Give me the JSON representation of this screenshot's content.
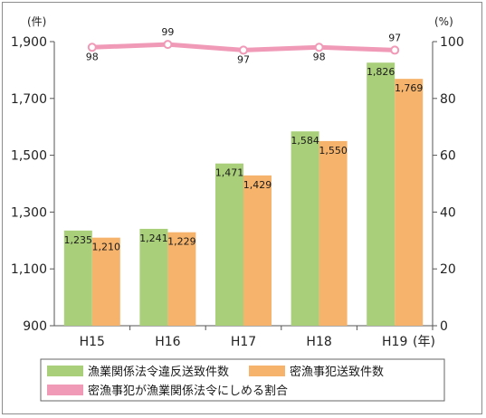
{
  "chart_data": {
    "type": "bar",
    "categories": [
      "H15",
      "H16",
      "H17",
      "H18",
      "H19"
    ],
    "x_unit": "(年)",
    "y_left": {
      "unit": "(件)",
      "min": 900,
      "max": 1900,
      "ticks": [
        "900",
        "1,100",
        "1,300",
        "1,500",
        "1,700",
        "1,900"
      ]
    },
    "y_right": {
      "unit": "(%)",
      "min": 0,
      "max": 100,
      "ticks": [
        "0",
        "20",
        "40",
        "60",
        "80",
        "100"
      ]
    },
    "series": [
      {
        "name": "漁業関係法令違反送致件数",
        "type": "bar",
        "axis": "left",
        "color": "#a9cf7a",
        "values": [
          1235,
          1241,
          1471,
          1584,
          1826
        ],
        "labels": [
          "1,235",
          "1,241",
          "1,471",
          "1,584",
          "1,826"
        ]
      },
      {
        "name": "密漁事犯送致件数",
        "type": "bar",
        "axis": "left",
        "color": "#f6b36b",
        "values": [
          1210,
          1229,
          1429,
          1550,
          1769
        ],
        "labels": [
          "1,210",
          "1,229",
          "1,429",
          "1,550",
          "1,769"
        ]
      },
      {
        "name": "密漁事犯が漁業関係法令にしめる割合",
        "type": "line",
        "axis": "right",
        "color": "#f09ab8",
        "values": [
          98,
          99,
          97,
          98,
          97
        ],
        "labels": [
          "98",
          "99",
          "97",
          "98",
          "97"
        ]
      }
    ],
    "legend_placement": "bottom",
    "grid": false
  }
}
